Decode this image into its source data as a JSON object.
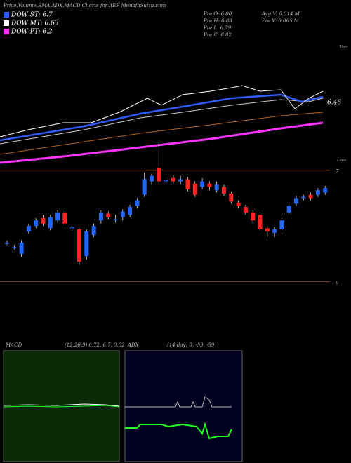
{
  "header": {
    "title": "Price,Volume,EMA,ADX,MACD Charts for AEF MunafaSutra.com"
  },
  "legend": [
    {
      "label": "DOW ST: 6.7",
      "color": "#2f5cff"
    },
    {
      "label": "DOW MT: 6.63",
      "color": "#ffffff"
    },
    {
      "label": "DOW PT: 6.2",
      "color": "#ff33ff"
    }
  ],
  "stats": [
    "Pre O: 6.80",
    "Avg V: 0.014 M",
    "Pre H: 6.83",
    "Pre V: 0.065 M",
    "Pre L: 6.79",
    "Pre C: 6.82"
  ],
  "top_panel": {
    "tops_label": "Tops",
    "lows_label": "Lows",
    "value_label": "6.46"
  },
  "chart_data": {
    "type": "candlestick",
    "open": [
      6.35,
      6.31,
      6.25,
      6.45,
      6.5,
      6.57,
      6.48,
      6.55,
      6.62,
      6.48,
      6.47,
      6.23,
      6.42,
      6.55,
      6.61,
      6.55,
      6.58,
      6.6,
      6.68,
      6.78,
      6.9,
      7.02,
      6.9,
      6.93,
      6.9,
      6.92,
      6.88,
      6.85,
      6.88,
      6.82,
      6.85,
      6.79,
      6.71,
      6.67,
      6.62,
      6.6,
      6.48,
      6.44,
      6.47,
      6.62,
      6.7,
      6.75,
      6.78,
      6.78,
      6.8
    ],
    "high": [
      6.37,
      6.33,
      6.37,
      6.52,
      6.57,
      6.6,
      6.6,
      6.64,
      6.63,
      6.5,
      6.48,
      6.47,
      6.52,
      6.64,
      6.63,
      6.6,
      6.65,
      6.69,
      6.75,
      6.98,
      6.97,
      7.25,
      6.94,
      6.96,
      6.95,
      6.94,
      6.9,
      6.93,
      6.9,
      6.9,
      6.87,
      6.81,
      6.73,
      6.69,
      6.64,
      6.62,
      6.5,
      6.49,
      6.57,
      6.7,
      6.77,
      6.78,
      6.8,
      6.84,
      6.86
    ],
    "low": [
      6.33,
      6.29,
      6.22,
      6.43,
      6.48,
      6.5,
      6.46,
      6.53,
      6.5,
      6.46,
      6.15,
      6.2,
      6.4,
      6.52,
      6.56,
      6.53,
      6.55,
      6.58,
      6.66,
      6.76,
      6.87,
      6.88,
      6.87,
      6.88,
      6.87,
      6.81,
      6.76,
      6.83,
      6.82,
      6.8,
      6.77,
      6.7,
      6.66,
      6.6,
      6.52,
      6.45,
      6.4,
      6.4,
      6.45,
      6.6,
      6.68,
      6.73,
      6.73,
      6.76,
      6.78
    ],
    "close": [
      6.35,
      6.31,
      6.35,
      6.5,
      6.55,
      6.52,
      6.58,
      6.62,
      6.52,
      6.49,
      6.18,
      6.45,
      6.5,
      6.62,
      6.58,
      6.56,
      6.63,
      6.67,
      6.73,
      6.92,
      6.95,
      6.9,
      6.91,
      6.9,
      6.92,
      6.83,
      6.78,
      6.9,
      6.85,
      6.87,
      6.79,
      6.72,
      6.68,
      6.62,
      6.55,
      6.47,
      6.45,
      6.47,
      6.55,
      6.68,
      6.75,
      6.76,
      6.75,
      6.82,
      6.84
    ],
    "ylim": [
      5.57,
      7.3
    ],
    "yticks": [
      6,
      7
    ],
    "color_up": "#2266ff",
    "color_down": "#ff2222"
  },
  "macd": {
    "label": "MACD",
    "params": "(12,26,9) 6.72, 6.7, 0.02"
  },
  "adx": {
    "label": "ADX",
    "params": "(14 day) 0, -59, -59"
  }
}
